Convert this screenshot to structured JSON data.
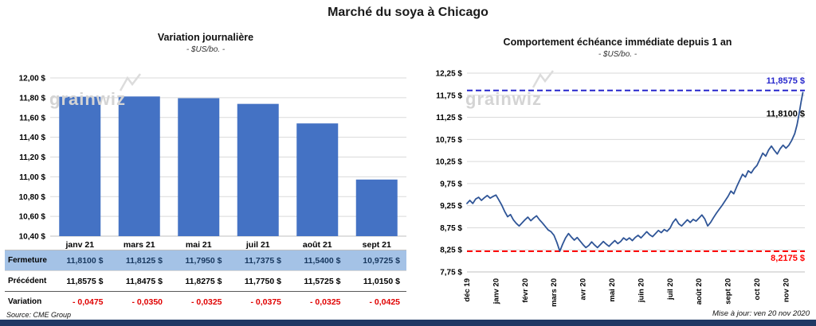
{
  "page": {
    "title": "Marché du soya à Chicago",
    "source": "Source: CME Group",
    "updated": "Mise à jour: ven 20 nov 2020",
    "watermark": "grainwiz",
    "accent_bar_color": "#1F3864"
  },
  "chart_data": [
    {
      "type": "bar",
      "title": "Variation journalière",
      "subtitle": "- $US/bo. -",
      "categories": [
        "janv 21",
        "mars 21",
        "mai 21",
        "juil 21",
        "août 21",
        "sept 21"
      ],
      "values": [
        11.81,
        11.8125,
        11.795,
        11.7375,
        11.54,
        10.9725
      ],
      "ylim": [
        10.4,
        12.0
      ],
      "ytick_step": 0.2,
      "ytick_format": "fr-currency",
      "grid": true,
      "legend": "none",
      "bar_color": "#4472C4"
    },
    {
      "type": "line",
      "title": "Comportement échéance immédiate depuis 1 an",
      "subtitle": "- $US/bo. -",
      "x_labels": [
        "déc 19",
        "janv 20",
        "févr 20",
        "mars 20",
        "avr 20",
        "mai 20",
        "juin 20",
        "juil 20",
        "août 20",
        "sept 20",
        "oct 20",
        "nov 20"
      ],
      "ylim": [
        7.75,
        12.25
      ],
      "ytick_step": 0.5,
      "grid": true,
      "legend": "none",
      "line_color": "#2F5597",
      "reference_lines": [
        {
          "value": 11.8575,
          "label": "11,8575 $",
          "color": "#2727CC",
          "style": "dashed"
        },
        {
          "value": 8.2175,
          "label": "8,2175 $",
          "color": "#FF0000",
          "style": "dashed"
        }
      ],
      "last_label": {
        "value": 11.81,
        "label": "11,8100 $",
        "color": "#000000"
      },
      "points": [
        [
          0,
          9.3
        ],
        [
          0.1,
          9.37
        ],
        [
          0.2,
          9.3
        ],
        [
          0.3,
          9.4
        ],
        [
          0.4,
          9.44
        ],
        [
          0.5,
          9.37
        ],
        [
          0.6,
          9.43
        ],
        [
          0.7,
          9.48
        ],
        [
          0.8,
          9.42
        ],
        [
          0.9,
          9.46
        ],
        [
          1,
          9.49
        ],
        [
          1.1,
          9.38
        ],
        [
          1.2,
          9.26
        ],
        [
          1.3,
          9.12
        ],
        [
          1.4,
          9.0
        ],
        [
          1.5,
          9.05
        ],
        [
          1.6,
          8.93
        ],
        [
          1.7,
          8.85
        ],
        [
          1.8,
          8.79
        ],
        [
          1.9,
          8.86
        ],
        [
          2,
          8.93
        ],
        [
          2.1,
          8.99
        ],
        [
          2.2,
          8.91
        ],
        [
          2.3,
          8.97
        ],
        [
          2.4,
          9.02
        ],
        [
          2.5,
          8.93
        ],
        [
          2.6,
          8.86
        ],
        [
          2.7,
          8.78
        ],
        [
          2.8,
          8.7
        ],
        [
          2.9,
          8.66
        ],
        [
          3,
          8.58
        ],
        [
          3.1,
          8.42
        ],
        [
          3.2,
          8.22
        ],
        [
          3.3,
          8.38
        ],
        [
          3.4,
          8.52
        ],
        [
          3.5,
          8.62
        ],
        [
          3.6,
          8.54
        ],
        [
          3.7,
          8.47
        ],
        [
          3.8,
          8.53
        ],
        [
          3.9,
          8.45
        ],
        [
          4,
          8.37
        ],
        [
          4.1,
          8.3
        ],
        [
          4.2,
          8.35
        ],
        [
          4.3,
          8.43
        ],
        [
          4.4,
          8.36
        ],
        [
          4.5,
          8.3
        ],
        [
          4.6,
          8.37
        ],
        [
          4.7,
          8.44
        ],
        [
          4.8,
          8.38
        ],
        [
          4.9,
          8.33
        ],
        [
          5,
          8.4
        ],
        [
          5.1,
          8.46
        ],
        [
          5.2,
          8.39
        ],
        [
          5.3,
          8.44
        ],
        [
          5.4,
          8.52
        ],
        [
          5.5,
          8.47
        ],
        [
          5.6,
          8.52
        ],
        [
          5.7,
          8.46
        ],
        [
          5.8,
          8.53
        ],
        [
          5.9,
          8.58
        ],
        [
          6,
          8.52
        ],
        [
          6.1,
          8.59
        ],
        [
          6.2,
          8.66
        ],
        [
          6.3,
          8.59
        ],
        [
          6.4,
          8.55
        ],
        [
          6.5,
          8.62
        ],
        [
          6.6,
          8.69
        ],
        [
          6.7,
          8.64
        ],
        [
          6.8,
          8.71
        ],
        [
          6.9,
          8.67
        ],
        [
          7,
          8.74
        ],
        [
          7.1,
          8.87
        ],
        [
          7.2,
          8.95
        ],
        [
          7.3,
          8.84
        ],
        [
          7.4,
          8.79
        ],
        [
          7.5,
          8.86
        ],
        [
          7.6,
          8.93
        ],
        [
          7.7,
          8.87
        ],
        [
          7.8,
          8.94
        ],
        [
          7.9,
          8.9
        ],
        [
          8,
          8.97
        ],
        [
          8.1,
          9.04
        ],
        [
          8.2,
          8.95
        ],
        [
          8.3,
          8.79
        ],
        [
          8.4,
          8.87
        ],
        [
          8.5,
          8.98
        ],
        [
          8.6,
          9.08
        ],
        [
          8.7,
          9.17
        ],
        [
          8.8,
          9.26
        ],
        [
          8.9,
          9.36
        ],
        [
          9,
          9.46
        ],
        [
          9.1,
          9.58
        ],
        [
          9.2,
          9.52
        ],
        [
          9.3,
          9.68
        ],
        [
          9.4,
          9.82
        ],
        [
          9.5,
          9.96
        ],
        [
          9.6,
          9.9
        ],
        [
          9.7,
          10.04
        ],
        [
          9.8,
          9.99
        ],
        [
          9.9,
          10.09
        ],
        [
          10,
          10.16
        ],
        [
          10.1,
          10.3
        ],
        [
          10.2,
          10.44
        ],
        [
          10.3,
          10.37
        ],
        [
          10.4,
          10.51
        ],
        [
          10.5,
          10.6
        ],
        [
          10.6,
          10.5
        ],
        [
          10.7,
          10.42
        ],
        [
          10.8,
          10.54
        ],
        [
          10.9,
          10.62
        ],
        [
          11,
          10.55
        ],
        [
          11.1,
          10.62
        ],
        [
          11.2,
          10.73
        ],
        [
          11.3,
          10.88
        ],
        [
          11.38,
          11.08
        ],
        [
          11.45,
          11.32
        ],
        [
          11.52,
          11.6
        ],
        [
          11.58,
          11.81
        ]
      ]
    }
  ],
  "table": {
    "rows": [
      {
        "label": "Fermeture",
        "values": [
          "11,8100 $",
          "11,8125 $",
          "11,7950 $",
          "11,7375 $",
          "11,5400 $",
          "10,9725 $"
        ]
      },
      {
        "label": "Précédent",
        "values": [
          "11,8575 $",
          "11,8475 $",
          "11,8275 $",
          "11,7750 $",
          "11,5725 $",
          "11,0150 $"
        ]
      },
      {
        "label": "Variation",
        "values": [
          "- 0,0475",
          "- 0,0350",
          "- 0,0325",
          "- 0,0375",
          "- 0,0325",
          "- 0,0425"
        ]
      }
    ]
  }
}
